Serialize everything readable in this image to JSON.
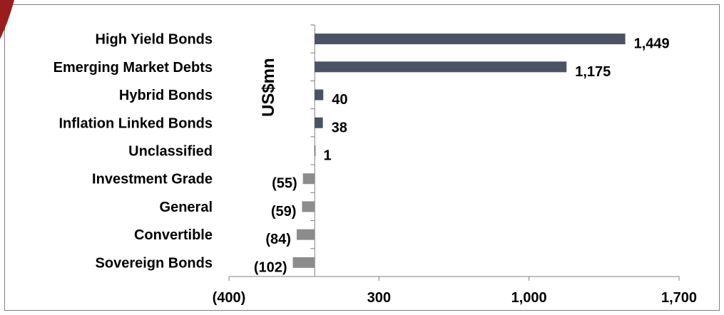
{
  "chart_data": {
    "type": "bar",
    "orientation": "horizontal",
    "unit_label": "US$mn",
    "xlim": [
      -400,
      1700
    ],
    "x_ticks": [
      {
        "value": -400,
        "label": "(400)"
      },
      {
        "value": 300,
        "label": "300"
      },
      {
        "value": 1000,
        "label": "1,000"
      },
      {
        "value": 1700,
        "label": "1,700"
      }
    ],
    "categories": [
      "High Yield Bonds",
      "Emerging Market Debts",
      "Hybrid Bonds",
      "Inflation Linked Bonds",
      "Unclassified",
      "Investment Grade",
      "General",
      "Convertible",
      "Sovereign Bonds"
    ],
    "values": [
      1449,
      1175,
      40,
      38,
      1,
      -55,
      -59,
      -84,
      -102
    ],
    "value_labels": [
      "1,449",
      "1,175",
      "40",
      "38",
      "1",
      "(55)",
      "(59)",
      "(84)",
      "(102)"
    ],
    "colors": {
      "positive": "#4a5263",
      "negative": "#8c8c8c",
      "corner": "#9b1c1c"
    },
    "grid": false
  }
}
